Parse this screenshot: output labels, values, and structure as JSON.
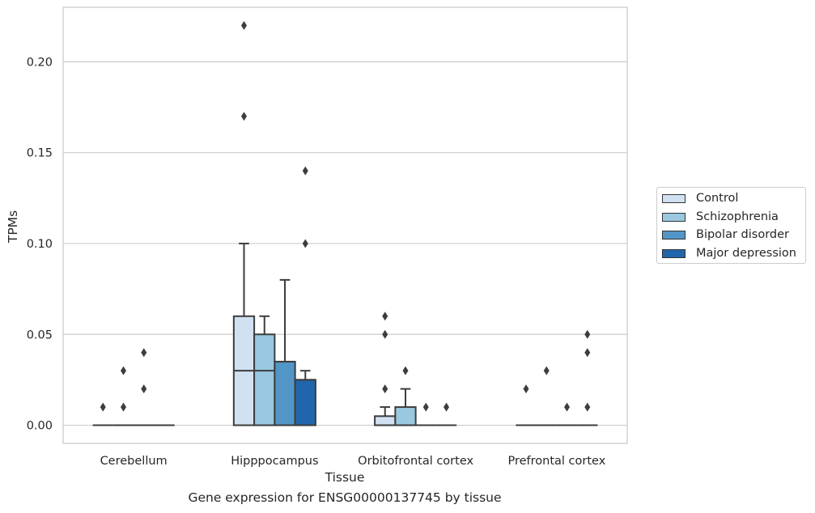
{
  "caption": "Gene expression for ENSG00000137745 by tissue",
  "chart_data": {
    "type": "box",
    "xlabel": "Tissue",
    "ylabel": "TPMs",
    "ylim": [
      -0.01,
      0.23
    ],
    "yticks": [
      "0.00",
      "0.05",
      "0.10",
      "0.15",
      "0.20"
    ],
    "ytick_values": [
      0,
      0.05,
      0.1,
      0.15,
      0.2
    ],
    "grid": true,
    "legend_position": "right",
    "categories": [
      "Cerebellum",
      "Hipppocampus",
      "Orbitofrontal cortex",
      "Prefrontal cortex"
    ],
    "series": [
      {
        "name": "Control",
        "color": "#d0e1f2",
        "boxes": [
          {
            "q1": 0,
            "median": 0,
            "q3": 0,
            "whisker_low": 0,
            "whisker_high": 0,
            "outliers": [
              0.01
            ]
          },
          {
            "q1": 0,
            "median": 0.03,
            "q3": 0.06,
            "whisker_low": 0,
            "whisker_high": 0.1,
            "outliers": [
              0.17,
              0.22
            ]
          },
          {
            "q1": 0,
            "median": 0,
            "q3": 0.005,
            "whisker_low": 0,
            "whisker_high": 0.01,
            "outliers": [
              0.02,
              0.05,
              0.06
            ]
          },
          {
            "q1": 0,
            "median": 0,
            "q3": 0,
            "whisker_low": 0,
            "whisker_high": 0,
            "outliers": [
              0.02
            ]
          }
        ]
      },
      {
        "name": "Schizophrenia",
        "color": "#9ac8e0",
        "boxes": [
          {
            "q1": 0,
            "median": 0,
            "q3": 0,
            "whisker_low": 0,
            "whisker_high": 0,
            "outliers": [
              0.01,
              0.03
            ]
          },
          {
            "q1": 0,
            "median": 0.03,
            "q3": 0.05,
            "whisker_low": 0,
            "whisker_high": 0.06,
            "outliers": []
          },
          {
            "q1": 0,
            "median": 0,
            "q3": 0.01,
            "whisker_low": 0,
            "whisker_high": 0.02,
            "outliers": [
              0.03
            ]
          },
          {
            "q1": 0,
            "median": 0,
            "q3": 0,
            "whisker_low": 0,
            "whisker_high": 0,
            "outliers": [
              0.03
            ]
          }
        ]
      },
      {
        "name": "Bipolar disorder",
        "color": "#5296c7",
        "boxes": [
          {
            "q1": 0,
            "median": 0,
            "q3": 0,
            "whisker_low": 0,
            "whisker_high": 0,
            "outliers": [
              0.02,
              0.04
            ]
          },
          {
            "q1": 0,
            "median": 0.035,
            "q3": 0.035,
            "whisker_low": 0,
            "whisker_high": 0.08,
            "outliers": []
          },
          {
            "q1": 0,
            "median": 0,
            "q3": 0,
            "whisker_low": 0,
            "whisker_high": 0,
            "outliers": [
              0.01
            ]
          },
          {
            "q1": 0,
            "median": 0,
            "q3": 0,
            "whisker_low": 0,
            "whisker_high": 0,
            "outliers": [
              0.01
            ]
          }
        ]
      },
      {
        "name": "Major depression",
        "color": "#2166ac",
        "boxes": [
          {
            "q1": 0,
            "median": 0,
            "q3": 0,
            "whisker_low": 0,
            "whisker_high": 0,
            "outliers": []
          },
          {
            "q1": 0,
            "median": 0.025,
            "q3": 0.025,
            "whisker_low": 0,
            "whisker_high": 0.03,
            "outliers": [
              0.1,
              0.14
            ]
          },
          {
            "q1": 0,
            "median": 0,
            "q3": 0,
            "whisker_low": 0,
            "whisker_high": 0,
            "outliers": [
              0.01
            ]
          },
          {
            "q1": 0,
            "median": 0,
            "q3": 0,
            "whisker_low": 0,
            "whisker_high": 0,
            "outliers": [
              0.01,
              0.04,
              0.05
            ]
          }
        ]
      }
    ]
  }
}
